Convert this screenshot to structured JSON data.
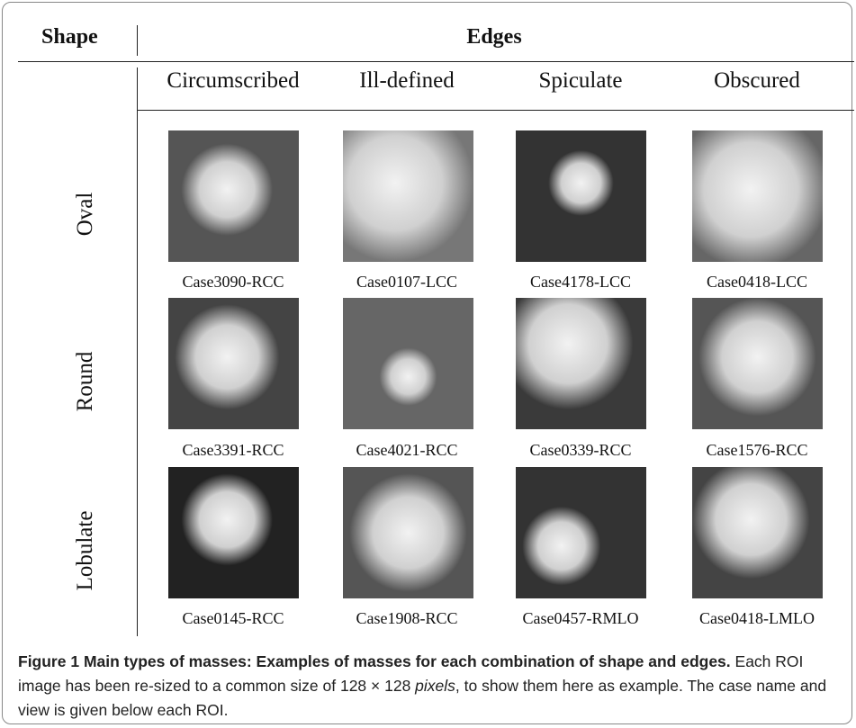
{
  "table": {
    "header": {
      "shape": "Shape",
      "edges": "Edges"
    },
    "columns": [
      "Circumscribed",
      "Ill-defined",
      "Spiculate",
      "Obscured"
    ],
    "rows": [
      {
        "shape": "Oval",
        "cases": [
          "Case3090-RCC",
          "Case0107-LCC",
          "Case4178-LCC",
          "Case0418-LCC"
        ]
      },
      {
        "shape": "Round",
        "cases": [
          "Case3391-RCC",
          "Case4021-RCC",
          "Case0339-RCC",
          "Case1576-RCC"
        ]
      },
      {
        "shape": "Lobulate",
        "cases": [
          "Case0145-RCC",
          "Case1908-RCC",
          "Case0457-RMLO",
          "Case0418-LMLO"
        ]
      }
    ]
  },
  "caption": {
    "label": "Figure 1",
    "title": "Main types of masses: Examples of masses for each combination of shape and edges.",
    "text_before": "Each ROI image has been re-sized to a common size of 128 × 128",
    "emphasis": "pixels",
    "text_after": ", to show them here as example. The case name and view is given below each ROI."
  }
}
